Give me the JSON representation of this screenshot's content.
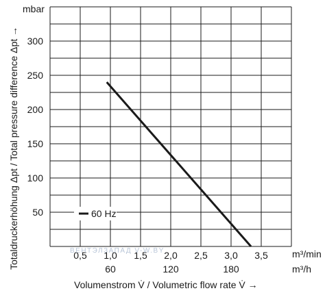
{
  "chart_data": {
    "type": "line",
    "ylabel": "Totaldruckerhöhung Δpt / Total pressure difference Δpt →",
    "y_unit": "mbar",
    "xlabel": "Volumenstrom V̇ / Volumetric flow rate V̇ →",
    "x_unit_primary": "m³/min",
    "x_unit_secondary": "m³/h",
    "ylim": [
      0,
      350
    ],
    "xlim": [
      0,
      4.0
    ],
    "grid": true,
    "y_ticks": [
      "50",
      "100",
      "150",
      "200",
      "250",
      "300"
    ],
    "y_tick_values": [
      50,
      100,
      150,
      200,
      250,
      300
    ],
    "x_ticks_primary": [
      "0,5",
      "1,0",
      "1,5",
      "2,0",
      "2,5",
      "3,0",
      "3,5"
    ],
    "x_tick_primary_values": [
      0.5,
      1.0,
      1.5,
      2.0,
      2.5,
      3.0,
      3.5
    ],
    "x_ticks_secondary": [
      "60",
      "120",
      "180"
    ],
    "x_tick_secondary_values": [
      1.0,
      2.0,
      3.0
    ],
    "legend_position": "bottom-left",
    "series": [
      {
        "name": "60 Hz",
        "color": "#1a1a1a",
        "x": [
          0.94,
          3.33
        ],
        "y": [
          240,
          0
        ]
      }
    ]
  },
  "watermark": "ВЕНТЭЛЗАПАД  V-W.BY"
}
